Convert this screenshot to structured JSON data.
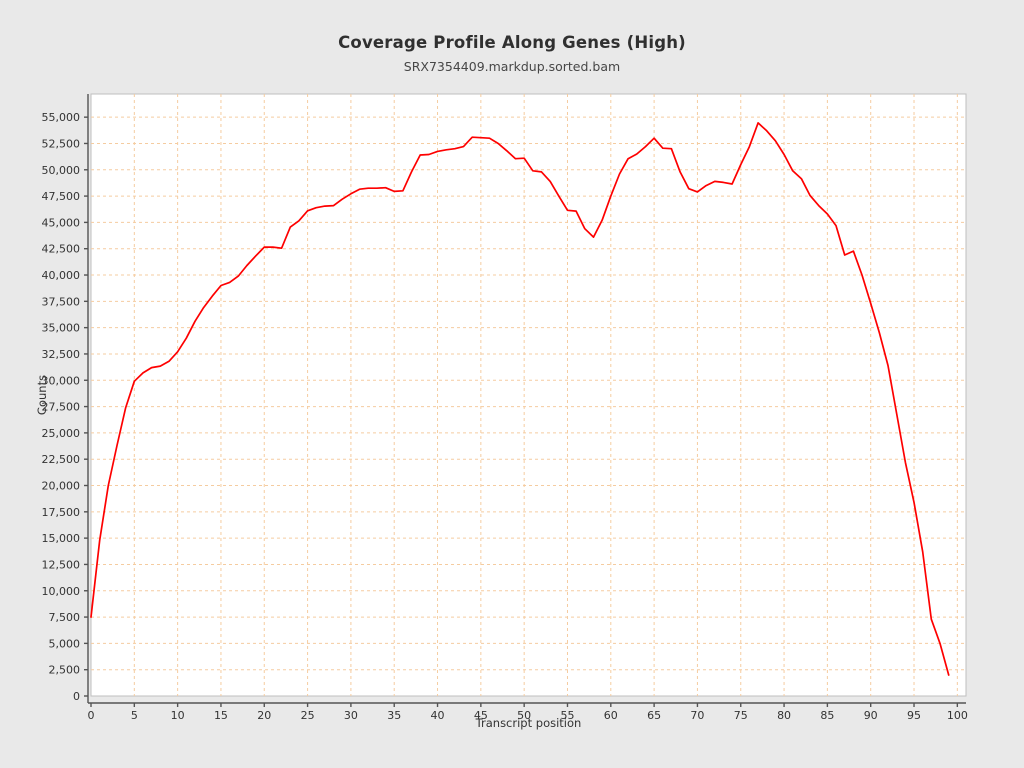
{
  "header": {
    "title": "Coverage Profile Along Genes (High)",
    "subtitle": "SRX7354409.markdup.sorted.bam"
  },
  "style": {
    "page_background": "#e9e9e9",
    "plot_background": "#ffffff",
    "plot_border_color": "#bfbfbf",
    "grid_color": "#f5cca0",
    "axis_color": "#545454",
    "tick_label_color": "#333333",
    "line_color": "#fe0000"
  },
  "chart_data": {
    "type": "line",
    "title": "Coverage Profile Along Genes (High)",
    "subtitle": "SRX7354409.markdup.sorted.bam",
    "xlabel": "Transcript position",
    "ylabel": "Counts",
    "xlim": [
      0,
      101
    ],
    "ylim": [
      0,
      57200
    ],
    "grid": true,
    "legend": "none",
    "x_ticks": [
      0,
      5,
      10,
      15,
      20,
      25,
      30,
      35,
      40,
      45,
      50,
      55,
      60,
      65,
      70,
      75,
      80,
      85,
      90,
      95,
      100
    ],
    "y_ticks": [
      0,
      2500,
      5000,
      7500,
      10000,
      12500,
      15000,
      17500,
      20000,
      22500,
      25000,
      27500,
      30000,
      32500,
      35000,
      37500,
      40000,
      42500,
      45000,
      47500,
      50000,
      52500,
      55000
    ],
    "series": [
      {
        "name": "SRX7354409.markdup.sorted.bam",
        "color": "#fe0000",
        "x_start": 0,
        "x_step": 1,
        "values": [
          7500,
          14800,
          20000,
          23800,
          27400,
          29900,
          30700,
          31200,
          31350,
          31800,
          32700,
          34000,
          35600,
          36900,
          38000,
          39000,
          39300,
          39900,
          40900,
          41800,
          42650,
          42650,
          42550,
          44550,
          45150,
          46100,
          46400,
          46550,
          46600,
          47200,
          47720,
          48150,
          48250,
          48250,
          48300,
          47950,
          48000,
          49800,
          51400,
          51450,
          51750,
          51900,
          52000,
          52200,
          53100,
          53050,
          53000,
          52500,
          51800,
          51050,
          51100,
          49900,
          49800,
          48900,
          47500,
          46150,
          46070,
          44400,
          43600,
          45200,
          47500,
          49600,
          51050,
          51500,
          52200,
          53000,
          52050,
          52000,
          49800,
          48200,
          47900,
          48500,
          48900,
          48800,
          48650,
          50500,
          52200,
          54450,
          53700,
          52750,
          51450,
          49900,
          49150,
          47550,
          46600,
          45800,
          44700,
          41900,
          42270,
          40000,
          37300,
          34500,
          31400,
          26800,
          22200,
          18400,
          13700,
          7300,
          5000,
          2000
        ]
      }
    ]
  }
}
